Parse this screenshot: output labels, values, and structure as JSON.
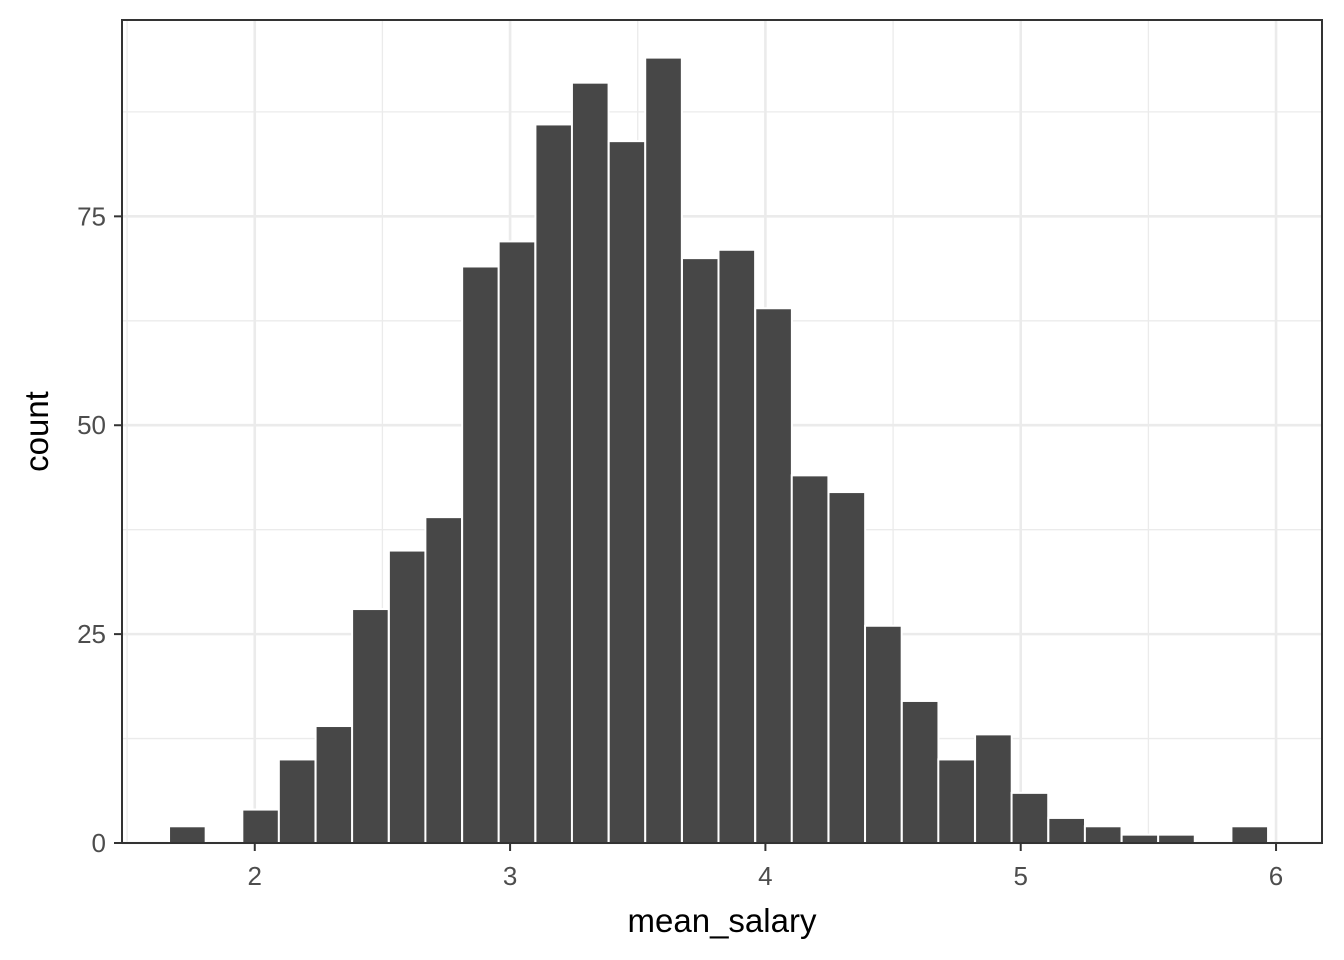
{
  "chart_data": {
    "type": "bar",
    "subtype": "histogram",
    "title": "",
    "xlabel": "mean_salary",
    "ylabel": "count",
    "xlim": [
      1.48,
      6.18
    ],
    "ylim": [
      0,
      98.5
    ],
    "x_ticks": [
      2,
      3,
      4,
      5,
      6
    ],
    "x_tick_labels": [
      "2",
      "3",
      "4",
      "5",
      "6"
    ],
    "y_ticks": [
      0,
      25,
      50,
      75
    ],
    "y_tick_labels": [
      "0",
      "25",
      "50",
      "75"
    ],
    "grid": true,
    "legend": "none",
    "colors": {
      "bar_fill": "#474747",
      "bar_outline": "#ffffff",
      "grid": "#ebebeb",
      "panel_border": "#333333"
    },
    "bin_width": 0.1435,
    "bins": [
      {
        "x": 1.736,
        "count": 2
      },
      {
        "x": 1.879,
        "count": 0
      },
      {
        "x": 2.023,
        "count": 4
      },
      {
        "x": 2.166,
        "count": 10
      },
      {
        "x": 2.31,
        "count": 14
      },
      {
        "x": 2.453,
        "count": 28
      },
      {
        "x": 2.597,
        "count": 35
      },
      {
        "x": 2.74,
        "count": 39
      },
      {
        "x": 2.884,
        "count": 69
      },
      {
        "x": 3.027,
        "count": 72
      },
      {
        "x": 3.171,
        "count": 86
      },
      {
        "x": 3.314,
        "count": 91
      },
      {
        "x": 3.458,
        "count": 84
      },
      {
        "x": 3.601,
        "count": 94
      },
      {
        "x": 3.745,
        "count": 70
      },
      {
        "x": 3.888,
        "count": 71
      },
      {
        "x": 4.032,
        "count": 64
      },
      {
        "x": 4.175,
        "count": 44
      },
      {
        "x": 4.319,
        "count": 42
      },
      {
        "x": 4.462,
        "count": 26
      },
      {
        "x": 4.606,
        "count": 17
      },
      {
        "x": 4.749,
        "count": 10
      },
      {
        "x": 4.893,
        "count": 13
      },
      {
        "x": 5.036,
        "count": 6
      },
      {
        "x": 5.18,
        "count": 3
      },
      {
        "x": 5.323,
        "count": 2
      },
      {
        "x": 5.467,
        "count": 1
      },
      {
        "x": 5.61,
        "count": 1
      },
      {
        "x": 5.754,
        "count": 0
      },
      {
        "x": 5.897,
        "count": 2
      }
    ]
  }
}
